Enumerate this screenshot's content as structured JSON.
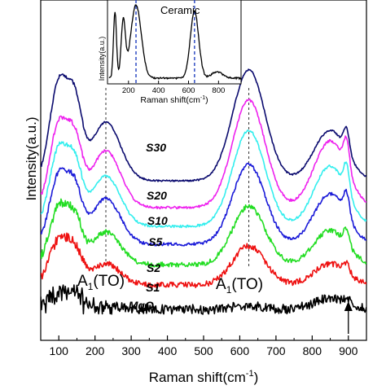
{
  "chart_data": [
    {
      "type": "line",
      "xlabel": "Raman shift(cm",
      "xlabel_sup": "-1",
      "xlabel_end": ")",
      "ylabel": "Intensity(a.u.)",
      "xlim": [
        50,
        950
      ],
      "xticks": [
        100,
        200,
        300,
        400,
        500,
        600,
        700,
        800,
        900
      ],
      "tick_labels": [
        "100",
        "200",
        "300",
        "400",
        "500",
        "600",
        "700",
        "800",
        "900"
      ],
      "y_ticks_shown": false,
      "legend": "none (series labels placed on curves)",
      "reference_lines": [
        230,
        625
      ],
      "annotations": [
        {
          "text_main": "A",
          "text_sub": "1",
          "text_end": "(TO)",
          "x": 130
        },
        {
          "text_main": "A",
          "text_sub": "1",
          "text_end": "(TO)",
          "x": 640
        }
      ],
      "arrow_annotation": {
        "x": 900,
        "label": ""
      },
      "series": [
        {
          "name": "MgO",
          "color": "#000000"
        },
        {
          "name": "S1",
          "color": "#ee1111"
        },
        {
          "name": "S2",
          "color": "#22dd22"
        },
        {
          "name": "S5",
          "color": "#1a1ad8"
        },
        {
          "name": "S10",
          "color": "#33eeee"
        },
        {
          "name": "S20",
          "color": "#ee22ee"
        },
        {
          "name": "S30",
          "color": "#0a0a6e"
        }
      ]
    },
    {
      "type": "line",
      "inset": true,
      "title": "Ceramic",
      "xlabel": "Raman shift(cm",
      "xlabel_sup": "-1",
      "xlabel_end": ")",
      "ylabel": "Intensity(a.u.)",
      "xlim": [
        60,
        950
      ],
      "xticks": [
        200,
        400,
        600,
        800
      ],
      "tick_labels": [
        "200",
        "400",
        "600",
        "800"
      ],
      "reference_lines": [
        250,
        640
      ],
      "series": [
        {
          "name": "",
          "color": "#000000"
        }
      ]
    }
  ]
}
